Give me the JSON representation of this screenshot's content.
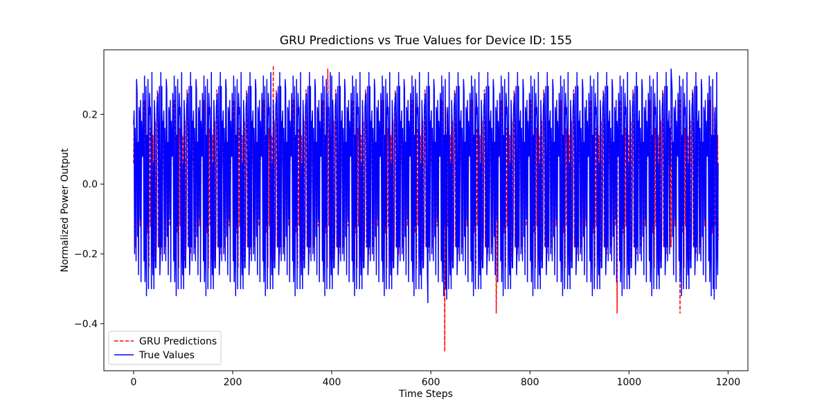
{
  "chart_data": {
    "type": "line",
    "title": "GRU Predictions vs True Values for Device ID: 155",
    "xlabel": "Time Steps",
    "ylabel": "Normalized Power Output",
    "xlim": [
      -60,
      1240
    ],
    "ylim": [
      -0.535,
      0.385
    ],
    "xticks": [
      0,
      200,
      400,
      600,
      800,
      1000,
      1200
    ],
    "yticks": [
      -0.4,
      -0.2,
      0.0,
      0.2
    ],
    "xtick_labels": [
      "0",
      "200",
      "400",
      "600",
      "800",
      "1000",
      "1200"
    ],
    "ytick_labels": [
      "−0.4",
      "−0.2",
      "0.0",
      "0.2"
    ],
    "grid": false,
    "legend_position": "lower-left",
    "series": [
      {
        "name": "GRU Predictions",
        "color": "#ff0000",
        "line_style": "dashed",
        "n_points": 1181,
        "values": [
          -0.09,
          0.18,
          -0.14,
          0.06,
          0.12,
          -0.18,
          0.02,
          0.22,
          -0.06,
          0.16,
          -0.2,
          0.1,
          0.04,
          -0.12,
          0.2,
          -0.16,
          0.06,
          0.14,
          -0.22,
          0.08,
          0.24,
          -0.1,
          0.02,
          0.16,
          -0.18,
          0.12,
          -0.04,
          0.2,
          -0.14,
          0.08,
          0.18,
          -0.24,
          0.1,
          0.22,
          -0.12,
          0.04,
          0.14,
          -0.2,
          0.06,
          0.27,
          -0.16,
          0.1,
          0.02,
          -0.22,
          0.18,
          0.08,
          -0.14,
          0.2,
          -0.06,
          0.12,
          -0.18,
          0.24,
          0.04,
          -0.12,
          0.16,
          -0.2,
          0.1,
          0.2,
          -0.16,
          0.06
        ],
        "extremes": [
          {
            "x": 282,
            "y": 0.34
          },
          {
            "x": 392,
            "y": 0.33
          },
          {
            "x": 628,
            "y": -0.48
          },
          {
            "x": 732,
            "y": -0.37
          },
          {
            "x": 976,
            "y": -0.37
          },
          {
            "x": 1103,
            "y": -0.37
          },
          {
            "x": 1068,
            "y": 0.27
          }
        ]
      },
      {
        "name": "True Values",
        "color": "#0000ff",
        "line_style": "solid",
        "n_points": 1181,
        "values": [
          -0.18,
          0.21,
          -0.2,
          0.17,
          0.05,
          -0.22,
          0.12,
          0.27,
          -0.15,
          0.08,
          -0.26,
          0.22,
          0.14,
          -0.1,
          0.24,
          -0.3,
          0.18,
          0.09,
          -0.24,
          0.26,
          0.12,
          -0.2,
          0.31,
          -0.28,
          0.16,
          0.28,
          -0.32,
          0.2,
          -0.12,
          0.3,
          -0.22,
          0.14,
          0.26,
          -0.3,
          0.22,
          0.1,
          -0.26,
          0.32,
          -0.18,
          0.24,
          0.06,
          -0.3,
          0.28,
          0.18,
          -0.24,
          0.3,
          -0.14,
          0.22,
          -0.28,
          0.26,
          0.12,
          -0.2,
          0.28,
          -0.26,
          0.2,
          0.32,
          -0.18,
          0.24,
          -0.22,
          0.18
        ],
        "extremes": [
          {
            "x": 86,
            "y": -0.32
          },
          {
            "x": 594,
            "y": -0.34
          },
          {
            "x": 632,
            "y": -0.33
          },
          {
            "x": 1085,
            "y": 0.33
          },
          {
            "x": 1172,
            "y": -0.33
          },
          {
            "x": 400,
            "y": 0.31
          },
          {
            "x": 620,
            "y": 0.22
          }
        ]
      }
    ]
  }
}
